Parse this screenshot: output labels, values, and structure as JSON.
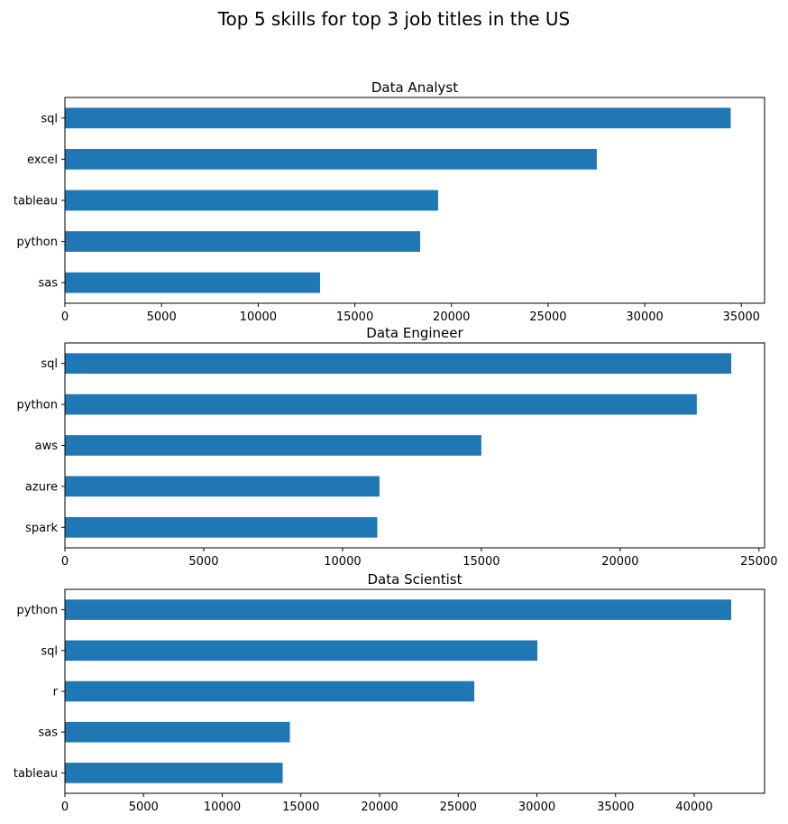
{
  "figure_title": "Top 5 skills for top 3 job titles in the US",
  "bar_color": "#1f77b4",
  "chart_data": [
    {
      "type": "bar",
      "orientation": "horizontal",
      "title": "Data Analyst",
      "xlabel": "",
      "ylabel": "",
      "categories": [
        "sql",
        "excel",
        "tableau",
        "python",
        "sas"
      ],
      "values": [
        34450,
        27520,
        19310,
        18380,
        13200
      ],
      "xlim": [
        0,
        36200
      ],
      "xticks": [
        0,
        5000,
        10000,
        15000,
        20000,
        25000,
        30000,
        35000
      ],
      "grid": false
    },
    {
      "type": "bar",
      "orientation": "horizontal",
      "title": "Data Engineer",
      "xlabel": "",
      "ylabel": "",
      "categories": [
        "sql",
        "python",
        "aws",
        "azure",
        "spark"
      ],
      "values": [
        24000,
        22760,
        15000,
        11330,
        11250
      ],
      "xlim": [
        0,
        25200
      ],
      "xticks": [
        0,
        5000,
        10000,
        15000,
        20000,
        25000
      ],
      "grid": false
    },
    {
      "type": "bar",
      "orientation": "horizontal",
      "title": "Data Scientist",
      "xlabel": "",
      "ylabel": "",
      "categories": [
        "python",
        "sql",
        "r",
        "sas",
        "tableau"
      ],
      "values": [
        42350,
        30030,
        26020,
        14300,
        13840
      ],
      "xlim": [
        0,
        44470
      ],
      "xticks": [
        0,
        5000,
        10000,
        15000,
        20000,
        25000,
        30000,
        35000,
        40000
      ],
      "grid": false
    }
  ]
}
